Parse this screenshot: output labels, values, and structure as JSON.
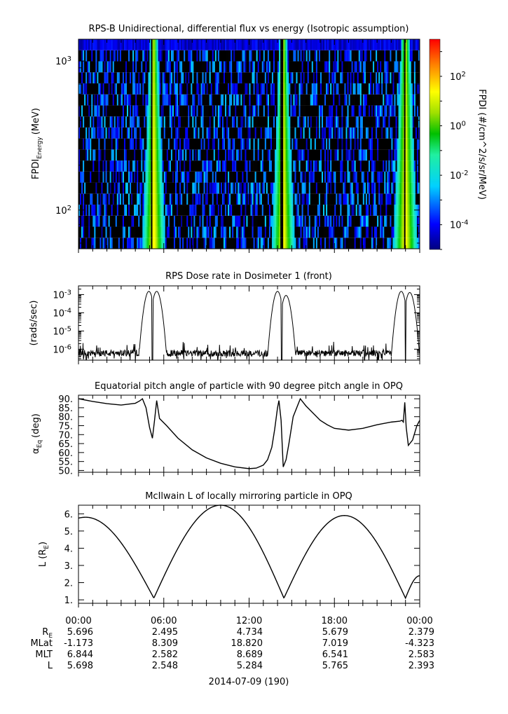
{
  "chart_data": [
    {
      "type": "heatmap",
      "title": "RPS-B  Unidirectional, differential flux vs energy (Isotropic assumption)",
      "ylabel": "FPDI",
      "ylabel_sub": "Energy",
      "ylabel_unit": "(MeV)",
      "yscale": "log",
      "ylim": [
        55,
        1400
      ],
      "yticks": [
        {
          "value": 100,
          "label": "10",
          "exp": "2"
        },
        {
          "value": 1000,
          "label": "10",
          "exp": "3"
        }
      ],
      "xlim": [
        0,
        24
      ],
      "energy_channels": 19,
      "time_bins": 240,
      "peaks_hours": [
        5.3,
        14.4,
        23.0
      ],
      "gaps_hours": [
        5.15,
        14.3,
        22.95
      ],
      "colorbar": {
        "label": "FPDI (#/cm^2/s/sr/MeV)",
        "scale": "log",
        "range": [
          -5,
          3.5
        ],
        "ticks": [
          {
            "value": 2,
            "label": "10",
            "exp": "2"
          },
          {
            "value": 0,
            "label": "10",
            "exp": "0"
          },
          {
            "value": -2,
            "label": "10",
            "exp": "-2"
          },
          {
            "value": -4,
            "label": "10",
            "exp": "-4"
          }
        ]
      }
    },
    {
      "type": "line",
      "title": "RPS  Dose rate in Dosimeter 1 (front)",
      "ylabel": "(rads/sec)",
      "yscale": "log",
      "ylim": [
        2.5e-07,
        0.003
      ],
      "xlim": [
        0,
        24
      ],
      "yticks": [
        {
          "value": 1e-06,
          "label": "10",
          "exp": "-6"
        },
        {
          "value": 1e-05,
          "label": "10",
          "exp": "-5"
        },
        {
          "value": 0.0001,
          "label": "10",
          "exp": "-4"
        },
        {
          "value": 0.001,
          "label": "10",
          "exp": "-3"
        }
      ],
      "background_rate": 6e-07,
      "peaks": [
        {
          "x": 4.95,
          "y": 0.0015
        },
        {
          "x": 5.5,
          "y": 0.0015
        },
        {
          "x": 14.0,
          "y": 0.0015
        },
        {
          "x": 14.6,
          "y": 0.0009
        },
        {
          "x": 22.7,
          "y": 0.0015
        },
        {
          "x": 23.3,
          "y": 0.0013
        }
      ],
      "notches": [
        5.2,
        14.3,
        23.0
      ]
    },
    {
      "type": "line",
      "title": "Equatorial pitch angle of particle with 90 degree pitch angle in OPQ",
      "ylabel": "α",
      "ylabel_sub": "Eq",
      "ylabel_unit": "(deg)",
      "ylim": [
        49,
        92
      ],
      "xlim": [
        0,
        24
      ],
      "yticks": [
        50,
        55,
        60,
        65,
        70,
        75,
        80,
        85,
        90
      ],
      "x": [
        0,
        1,
        2,
        3,
        4,
        4.3,
        4.5,
        4.75,
        5.0,
        5.2,
        5.35,
        5.5,
        5.7,
        6.2,
        7,
        8,
        9,
        10,
        11,
        12,
        12.5,
        13,
        13.3,
        13.6,
        13.8,
        14.0,
        14.1,
        14.25,
        14.4,
        14.6,
        14.8,
        15.1,
        15.6,
        16,
        17,
        17.5,
        18,
        19,
        20,
        21,
        22,
        22.6,
        22.75,
        22.85,
        22.95,
        23.05,
        23.2,
        23.5,
        23.8,
        24
      ],
      "y": [
        90,
        88.5,
        87.3,
        86.5,
        87.5,
        88.8,
        90,
        85,
        74,
        68,
        78,
        89,
        79,
        75,
        68,
        61.5,
        57,
        54,
        52,
        51,
        51.3,
        53,
        56,
        63,
        73,
        85,
        89,
        78,
        52,
        56,
        65,
        80,
        90,
        86,
        78,
        75.5,
        73.5,
        72.5,
        73.5,
        75.5,
        77,
        77.5,
        78,
        77,
        88,
        74,
        64,
        67,
        75,
        78
      ]
    },
    {
      "type": "line",
      "title": "McIlwain L of locally mirroring particle in OPQ",
      "ylabel": "L (R",
      "ylabel_sub": "E",
      "ylabel_close": ")",
      "ylim": [
        0.8,
        6.5
      ],
      "xlim": [
        0,
        24
      ],
      "yticks": [
        1,
        2,
        3,
        4,
        5,
        6
      ],
      "segments": [
        {
          "x0": 0,
          "x1": 5.3,
          "xpeak": 0.5,
          "peak": 5.8,
          "min": 1.1
        },
        {
          "x0": 5.3,
          "x1": 14.45,
          "xpeak": 10.0,
          "peak": 6.5,
          "min": 1.1
        },
        {
          "x0": 14.45,
          "x1": 23.0,
          "xpeak": 18.7,
          "peak": 5.9,
          "min": 1.1
        }
      ],
      "end": {
        "x": 24,
        "y": 2.4
      }
    }
  ],
  "xaxis": {
    "tick_labels": [
      "00:00",
      "06:00",
      "12:00",
      "18:00",
      "00:00"
    ],
    "tick_hours": [
      0,
      6,
      12,
      18,
      24
    ],
    "minor_step_hours": 1,
    "ephemeris": [
      {
        "label": "R",
        "sub": "E",
        "values": [
          "5.696",
          "2.495",
          "4.734",
          "5.679",
          "2.379"
        ]
      },
      {
        "label": "MLat",
        "sub": "",
        "values": [
          "-1.173",
          "8.309",
          "18.820",
          "7.019",
          "-4.323"
        ]
      },
      {
        "label": "MLT",
        "sub": "",
        "values": [
          "6.844",
          "2.582",
          "8.689",
          "6.541",
          "2.583"
        ]
      },
      {
        "label": "L",
        "sub": "",
        "values": [
          "5.698",
          "2.548",
          "5.284",
          "5.765",
          "2.393"
        ]
      }
    ],
    "date_label": "2014-07-09 (190)"
  }
}
